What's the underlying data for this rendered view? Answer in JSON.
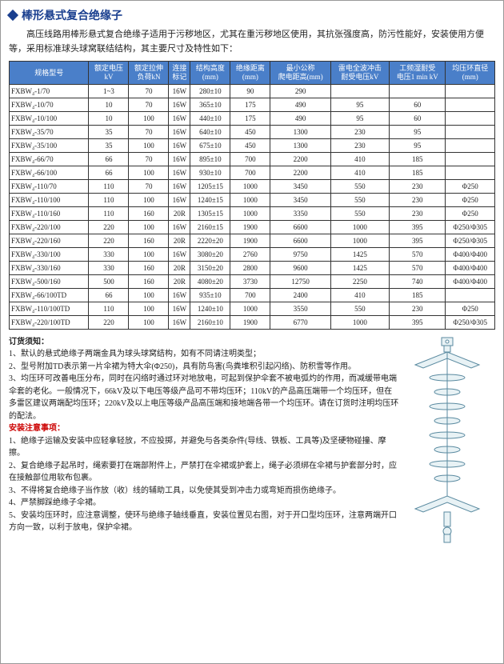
{
  "title": "棒形悬式复合绝缘子",
  "intro": "高压线路用棒形悬式复合绝缘子适用于污秽地区，尤其在重污秽地区使用，其抗张强度高，防污性能好，安装使用方便等，采用标准球头球窝联结结构，其主要尺寸及特性如下：",
  "columns": [
    "规格型号",
    "额定电压\nkV",
    "额定拉伸\n负荷kN",
    "连接\n标记",
    "结构高度\n(mm)",
    "绝缘距离\n(mm)",
    "最小公称\n爬电距高(mm)",
    "雷电全波冲击\n耐受电压kV",
    "工频湿耐受\n电压1 min kV",
    "均压环直径\n(mm)"
  ],
  "rows": [
    [
      "FXBW₄-1/70",
      "1~3",
      "70",
      "16W",
      "280±10",
      "90",
      "290",
      "",
      "",
      ""
    ],
    [
      "FXBW₄-10/70",
      "10",
      "70",
      "16W",
      "365±10",
      "175",
      "490",
      "95",
      "60",
      ""
    ],
    [
      "FXBW₄-10/100",
      "10",
      "100",
      "16W",
      "440±10",
      "175",
      "490",
      "95",
      "60",
      ""
    ],
    [
      "FXBW₄-35/70",
      "35",
      "70",
      "16W",
      "640±10",
      "450",
      "1300",
      "230",
      "95",
      ""
    ],
    [
      "FXBW₄-35/100",
      "35",
      "100",
      "16W",
      "675±10",
      "450",
      "1300",
      "230",
      "95",
      ""
    ],
    [
      "FXBW₄-66/70",
      "66",
      "70",
      "16W",
      "895±10",
      "700",
      "2200",
      "410",
      "185",
      ""
    ],
    [
      "FXBW₄-66/100",
      "66",
      "100",
      "16W",
      "930±10",
      "700",
      "2200",
      "410",
      "185",
      ""
    ],
    [
      "FXBW₄-110/70",
      "110",
      "70",
      "16W",
      "1205±15",
      "1000",
      "3450",
      "550",
      "230",
      "Φ250"
    ],
    [
      "FXBW₄-110/100",
      "110",
      "100",
      "16W",
      "1240±15",
      "1000",
      "3450",
      "550",
      "230",
      "Φ250"
    ],
    [
      "FXBW₄-110/160",
      "110",
      "160",
      "20R",
      "1305±15",
      "1000",
      "3350",
      "550",
      "230",
      "Φ250"
    ],
    [
      "FXBW₄-220/100",
      "220",
      "100",
      "16W",
      "2160±15",
      "1900",
      "6600",
      "1000",
      "395",
      "Φ250/Φ305"
    ],
    [
      "FXBW₄-220/160",
      "220",
      "160",
      "20R",
      "2220±20",
      "1900",
      "6600",
      "1000",
      "395",
      "Φ250/Φ305"
    ],
    [
      "FXBW₄-330/100",
      "330",
      "100",
      "16W",
      "3080±20",
      "2760",
      "9750",
      "1425",
      "570",
      "Φ400/Φ400"
    ],
    [
      "FXBW₄-330/160",
      "330",
      "160",
      "20R",
      "3150±20",
      "2800",
      "9600",
      "1425",
      "570",
      "Φ400/Φ400"
    ],
    [
      "FXBW₄-500/160",
      "500",
      "160",
      "20R",
      "4080±20",
      "3730",
      "12750",
      "2250",
      "740",
      "Φ400/Φ400"
    ],
    [
      "FXBW₄-66/100TD",
      "66",
      "100",
      "16W",
      "935±10",
      "700",
      "2400",
      "410",
      "185",
      ""
    ],
    [
      "FXBW₄-110/100TD",
      "110",
      "100",
      "16W",
      "1240±10",
      "1000",
      "3550",
      "550",
      "230",
      "Φ250"
    ],
    [
      "FXBW₄-220/100TD",
      "220",
      "100",
      "16W",
      "2160±10",
      "1900",
      "6770",
      "1000",
      "395",
      "Φ250/Φ305"
    ]
  ],
  "order_title": "订货须知：",
  "order_items": [
    "1、默认的悬式绝缘子两端金具为球头球窝结构，如有不同请注明类型；",
    "2、型号附加TD表示第一片伞裙为特大伞(Φ250)，具有防鸟害(鸟粪堆积引起闪络)、防积雪等作用。",
    "3、均压环可改善电压分布，同时在闪络时通过环对地放电，可起到保护伞套不被电弧灼的作用，而减缓带电端伞套的老化。一般情况下，66kV及以下电压等级产品可不带均压环；110kV的产品高压端带一个均压环，但在多雷区建议两端配均压环；220kV及以上电压等级产品高压端和接地端各带一个均压环。请在订货时注明均压环的配法。"
  ],
  "install_title": "安装注意事项：",
  "install_items": [
    "1、绝缘子运输及安装中应轻拿轻放，不应投掷，并避免与各类杂件(导线、铁板、工具等)及坚硬物碰撞、摩擦。",
    "2、复合绝缘子起吊时，绳索要打在端部附件上，严禁打在伞裙或护套上，绳子必须绑在伞裙与护套部分时，应在接触部位用软布包裹。",
    "3、不得将复合绝缘子当作放（收）线的辅助工具，以免使其受到冲击力或弯矩而损伤绝缘子。",
    "4、严禁脚踩绝缘子伞裙。",
    "5、安装均压环时，应注意调整，使环与绝缘子轴线垂直，安装位置见右图，对于开口型均压环，注意两端开口方向一致，以利于放电，保护伞裙。"
  ],
  "diagram": {
    "stroke": "#5a8aa0",
    "fill": "#e8f2f5"
  }
}
